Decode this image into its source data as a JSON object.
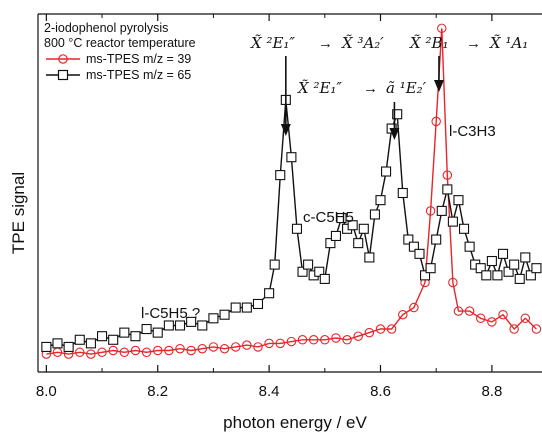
{
  "chart_data": {
    "type": "line",
    "xlabel": "photon energy / eV",
    "ylabel": "TPE signal",
    "xlim": [
      7.985,
      8.89
    ],
    "ylim": [
      0,
      1.0
    ],
    "x_ticks": [
      "8.0",
      "8.2",
      "8.4",
      "8.6",
      "8.8"
    ],
    "legend": {
      "placement": "top-left",
      "title_lines": [
        "2-iodophenol pyrolysis",
        "800 °C reactor temperature"
      ]
    },
    "series": [
      {
        "name": "ms-TPES m/z = 39",
        "color": "#e8252a",
        "marker": "circle",
        "x": [
          8.0,
          8.02,
          8.04,
          8.06,
          8.08,
          8.1,
          8.12,
          8.14,
          8.16,
          8.18,
          8.2,
          8.22,
          8.24,
          8.26,
          8.28,
          8.3,
          8.32,
          8.34,
          8.36,
          8.38,
          8.4,
          8.42,
          8.44,
          8.46,
          8.48,
          8.5,
          8.52,
          8.54,
          8.56,
          8.58,
          8.6,
          8.62,
          8.64,
          8.66,
          8.68,
          8.69,
          8.7,
          8.71,
          8.72,
          8.73,
          8.74,
          8.76,
          8.78,
          8.8,
          8.82,
          8.84,
          8.86,
          8.88
        ],
        "y": [
          0.05,
          0.055,
          0.05,
          0.055,
          0.05,
          0.055,
          0.06,
          0.055,
          0.06,
          0.055,
          0.06,
          0.06,
          0.065,
          0.06,
          0.065,
          0.07,
          0.065,
          0.07,
          0.075,
          0.07,
          0.08,
          0.08,
          0.085,
          0.09,
          0.09,
          0.09,
          0.095,
          0.09,
          0.1,
          0.11,
          0.12,
          0.12,
          0.16,
          0.18,
          0.25,
          0.45,
          0.7,
          0.96,
          0.55,
          0.25,
          0.17,
          0.17,
          0.15,
          0.14,
          0.16,
          0.12,
          0.15,
          0.12
        ]
      },
      {
        "name": "ms-TPES m/z = 65",
        "color": "#111111",
        "marker": "square",
        "x": [
          8.0,
          8.02,
          8.04,
          8.06,
          8.08,
          8.1,
          8.12,
          8.14,
          8.16,
          8.18,
          8.2,
          8.22,
          8.24,
          8.26,
          8.28,
          8.3,
          8.32,
          8.34,
          8.36,
          8.38,
          8.4,
          8.41,
          8.42,
          8.43,
          8.44,
          8.45,
          8.46,
          8.47,
          8.48,
          8.49,
          8.5,
          8.51,
          8.52,
          8.53,
          8.54,
          8.55,
          8.56,
          8.57,
          8.58,
          8.59,
          8.6,
          8.61,
          8.62,
          8.63,
          8.64,
          8.65,
          8.66,
          8.67,
          8.68,
          8.69,
          8.7,
          8.71,
          8.72,
          8.73,
          8.74,
          8.75,
          8.76,
          8.77,
          8.78,
          8.79,
          8.8,
          8.81,
          8.82,
          8.83,
          8.84,
          8.85,
          8.86,
          8.87,
          8.88
        ],
        "y": [
          0.07,
          0.08,
          0.07,
          0.09,
          0.08,
          0.1,
          0.09,
          0.11,
          0.1,
          0.12,
          0.11,
          0.13,
          0.13,
          0.14,
          0.13,
          0.15,
          0.16,
          0.18,
          0.18,
          0.19,
          0.22,
          0.3,
          0.55,
          0.76,
          0.6,
          0.4,
          0.28,
          0.3,
          0.27,
          0.28,
          0.26,
          0.36,
          0.38,
          0.43,
          0.4,
          0.41,
          0.36,
          0.4,
          0.32,
          0.44,
          0.48,
          0.56,
          0.68,
          0.72,
          0.5,
          0.37,
          0.35,
          0.33,
          0.27,
          0.29,
          0.37,
          0.45,
          0.51,
          0.42,
          0.48,
          0.4,
          0.35,
          0.3,
          0.29,
          0.27,
          0.31,
          0.27,
          0.33,
          0.28,
          0.3,
          0.26,
          0.32,
          0.27,
          0.29
        ]
      }
    ],
    "annotations": [
      {
        "text": "l-C5H5 ?",
        "x": 8.17,
        "y": 0.16
      },
      {
        "text": "c-C5H5",
        "x": 8.57,
        "y": 0.54
      },
      {
        "text": "l-C3H3",
        "x": 8.78,
        "y": 0.83
      }
    ],
    "top_labels": [
      {
        "state_a": "X̃ ²E₁″",
        "arrow": "→",
        "state_b": "X̃ ³A₂′",
        "pointer_x": 8.43
      },
      {
        "state_a": "X̃ ²E₁″",
        "arrow": "→",
        "state_b": "ã ¹E₂′",
        "pointer_x": 8.625
      },
      {
        "state_a": "X̃ ²B₁",
        "arrow": "→",
        "state_b": "X̃ ¹A₁",
        "pointer_x": 8.705
      }
    ]
  }
}
